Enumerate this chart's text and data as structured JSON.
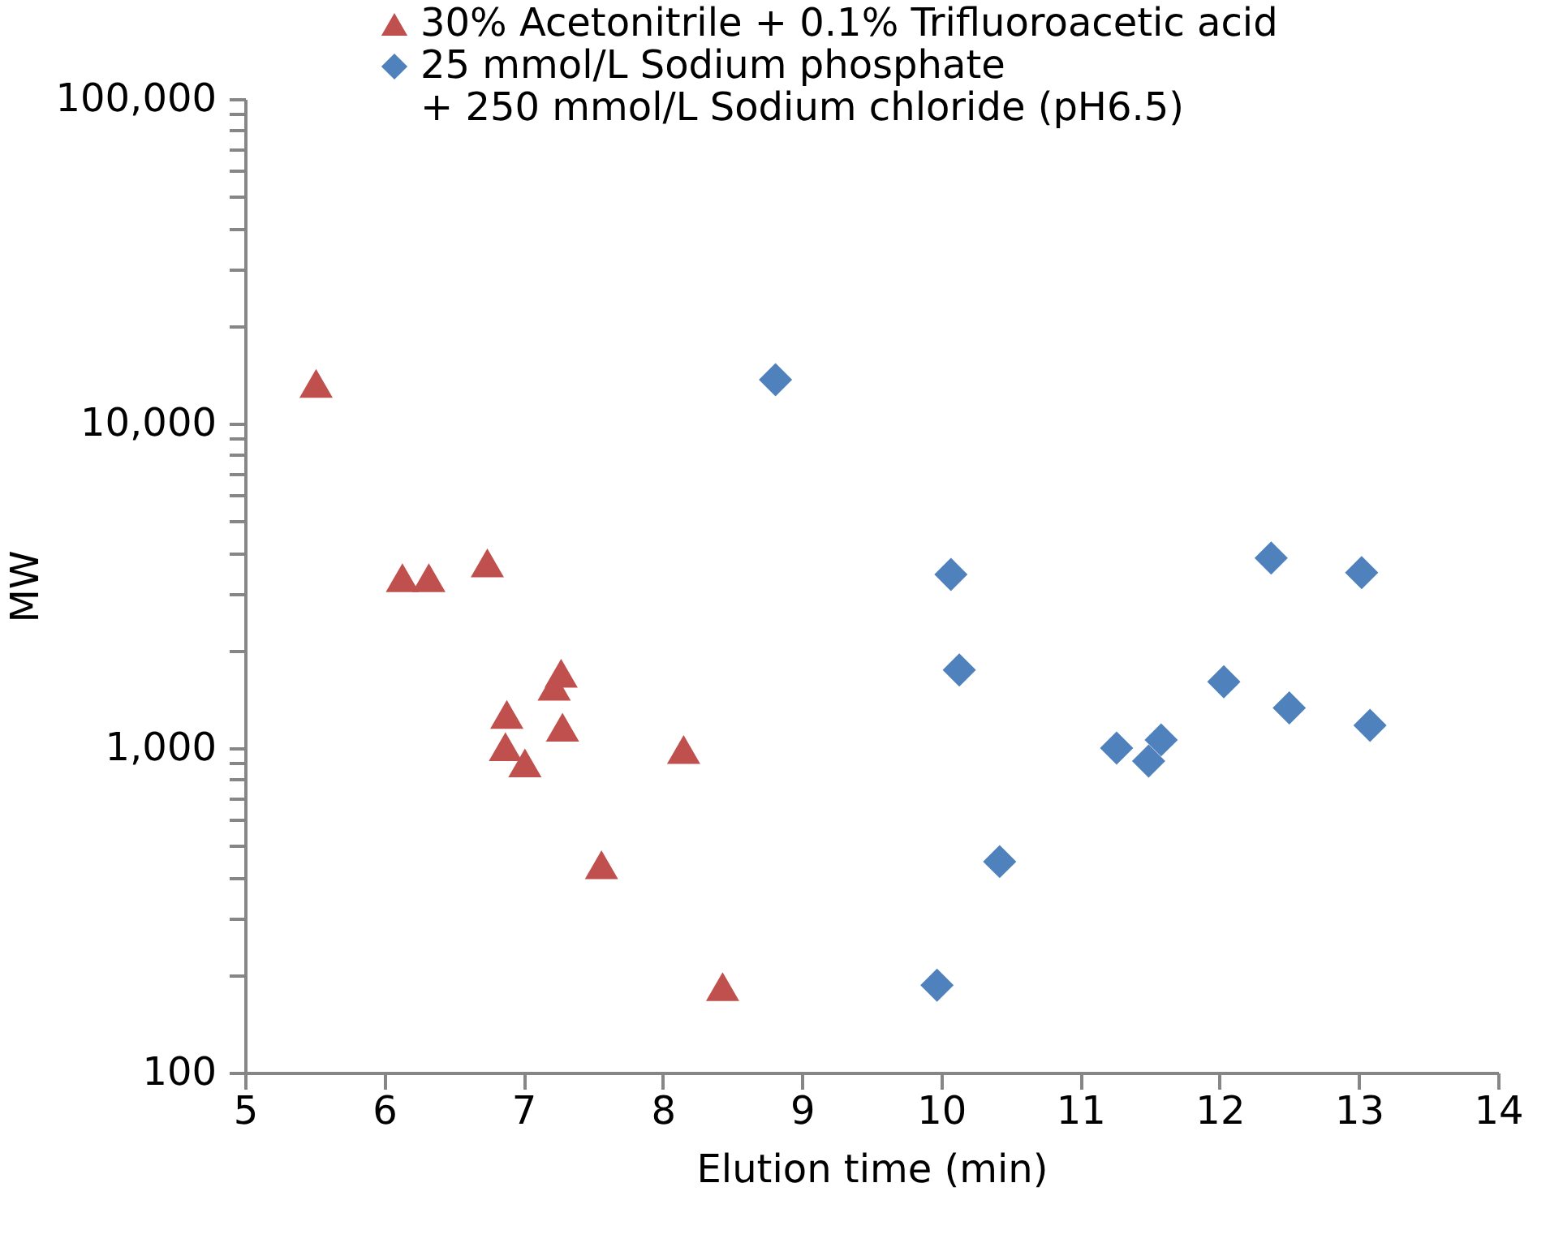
{
  "chart_data": {
    "type": "scatter",
    "xlabel": "Elution time (min)",
    "ylabel": "MW",
    "log": "y",
    "grid": false,
    "legend": "top right",
    "xlim": [
      5,
      14
    ],
    "xticks": [
      5,
      6,
      7,
      8,
      9,
      10,
      11,
      12,
      13,
      14
    ],
    "ylim": [
      100,
      100000
    ],
    "yticks": [
      100,
      {
        "value": 200,
        "label": null
      },
      {
        "value": 300,
        "label": null
      },
      {
        "value": 400,
        "label": null
      },
      {
        "value": 500,
        "label": null
      },
      {
        "value": 600,
        "label": null
      },
      {
        "value": 700,
        "label": null
      },
      {
        "value": 800,
        "label": null
      },
      {
        "value": 900,
        "label": null
      },
      {
        "value": 1000,
        "label": "1,000"
      },
      {
        "value": 2000,
        "label": null
      },
      {
        "value": 3000,
        "label": null
      },
      {
        "value": 4000,
        "label": null
      },
      {
        "value": 5000,
        "label": null
      },
      {
        "value": 6000,
        "label": null
      },
      {
        "value": 7000,
        "label": null
      },
      {
        "value": 8000,
        "label": null
      },
      {
        "value": 9000,
        "label": null
      },
      {
        "value": 10000,
        "label": "10,000"
      },
      {
        "value": 20000,
        "label": null
      },
      {
        "value": 30000,
        "label": null
      },
      {
        "value": 40000,
        "label": null
      },
      {
        "value": 50000,
        "label": null
      },
      {
        "value": 60000,
        "label": null
      },
      {
        "value": 70000,
        "label": null
      },
      {
        "value": 80000,
        "label": null
      },
      {
        "value": 90000,
        "label": null
      },
      {
        "value": 100000,
        "label": "100,000"
      }
    ],
    "series": [
      {
        "name": "30% Acetonitrile + 0.1% Trifluoroacetic acid",
        "color": "#c0504d",
        "marker": "triangle",
        "x": [
          5.51,
          6.13,
          6.32,
          6.74,
          6.88,
          6.87,
          7.01,
          7.27,
          7.22,
          7.28,
          8.15,
          7.56,
          8.43
        ],
        "values": [
          13300,
          3350,
          3350,
          3720,
          1270,
          1010,
          900,
          1700,
          1550,
          1160,
          990,
          437,
          184
        ]
      },
      {
        "name": "25 mmol/L Sodium phosphate\n+ 250 mmol/L Sodium chloride (pH6.5)",
        "color": "#4f81bd",
        "marker": "diamond",
        "x": [
          8.81,
          10.07,
          10.13,
          10.42,
          9.97,
          11.26,
          11.49,
          11.58,
          12.03,
          12.37,
          12.5,
          13.02,
          13.08
        ],
        "values": [
          13650,
          3430,
          1740,
          447,
          186,
          1000,
          912,
          1060,
          1600,
          3850,
          1330,
          3470,
          1175
        ]
      }
    ]
  }
}
